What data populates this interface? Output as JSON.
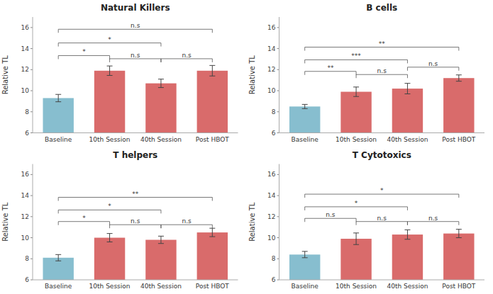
{
  "chart_data": [
    {
      "type": "bar",
      "title": "Natural Killers",
      "categories": [
        "Baseline",
        "10th Session",
        "40th Session",
        "Post HBOT"
      ],
      "values": [
        9.3,
        11.9,
        10.7,
        11.9
      ],
      "errors": [
        0.35,
        0.45,
        0.4,
        0.5
      ],
      "colors": [
        "#87BECF",
        "#D96B6B",
        "#D96B6B",
        "#D96B6B"
      ],
      "annotations": [
        {
          "from": "Baseline",
          "to": "10th Session",
          "y": 13.0,
          "label": "*"
        },
        {
          "from": "Baseline",
          "to": "40th Session",
          "y": 14.2,
          "label": "*"
        },
        {
          "from": "Baseline",
          "to": "Post HBOT",
          "y": 15.5,
          "label": "n.s"
        },
        {
          "from": "10th Session",
          "to": "40th Session",
          "y": 12.7,
          "label": "n.s"
        },
        {
          "from": "40th Session",
          "to": "Post HBOT",
          "y": 12.7,
          "label": "n.s"
        }
      ],
      "ylabel": "Relative TL",
      "ylim": [
        6,
        17
      ],
      "yticks": [
        6,
        8,
        10,
        12,
        14,
        16
      ],
      "grid": false
    },
    {
      "type": "bar",
      "title": "B cells",
      "categories": [
        "Baseline",
        "10th Session",
        "40th Session",
        "Post HBOT"
      ],
      "values": [
        8.5,
        9.9,
        10.2,
        11.2
      ],
      "errors": [
        0.2,
        0.45,
        0.5,
        0.3
      ],
      "colors": [
        "#87BECF",
        "#D96B6B",
        "#D96B6B",
        "#D96B6B"
      ],
      "annotations": [
        {
          "from": "Baseline",
          "to": "10th Session",
          "y": 11.5,
          "label": "**"
        },
        {
          "from": "Baseline",
          "to": "40th Session",
          "y": 12.6,
          "label": "***"
        },
        {
          "from": "Baseline",
          "to": "Post HBOT",
          "y": 13.8,
          "label": "**"
        },
        {
          "from": "10th Session",
          "to": "40th Session",
          "y": 11.2,
          "label": "n.s"
        },
        {
          "from": "40th Session",
          "to": "Post HBOT",
          "y": 11.9,
          "label": "n.s"
        }
      ],
      "ylabel": "Relative TL",
      "ylim": [
        6,
        17
      ],
      "yticks": [
        6,
        8,
        10,
        12,
        14,
        16
      ],
      "grid": false
    },
    {
      "type": "bar",
      "title": "T helpers",
      "categories": [
        "Baseline",
        "10th Session",
        "40th Session",
        "Post HBOT"
      ],
      "values": [
        8.1,
        10.0,
        9.8,
        10.5
      ],
      "errors": [
        0.3,
        0.4,
        0.35,
        0.4
      ],
      "colors": [
        "#87BECF",
        "#D96B6B",
        "#D96B6B",
        "#D96B6B"
      ],
      "annotations": [
        {
          "from": "Baseline",
          "to": "10th Session",
          "y": 11.2,
          "label": "*"
        },
        {
          "from": "Baseline",
          "to": "40th Session",
          "y": 12.3,
          "label": "*"
        },
        {
          "from": "Baseline",
          "to": "Post HBOT",
          "y": 13.5,
          "label": "**"
        },
        {
          "from": "10th Session",
          "to": "40th Session",
          "y": 10.9,
          "label": "n.s"
        },
        {
          "from": "40th Session",
          "to": "Post HBOT",
          "y": 10.9,
          "label": "n.s"
        }
      ],
      "ylabel": "Relative TL",
      "ylim": [
        6,
        17
      ],
      "yticks": [
        6,
        8,
        10,
        12,
        14,
        16
      ],
      "grid": false
    },
    {
      "type": "bar",
      "title": "T Cytotoxics",
      "categories": [
        "Baseline",
        "10th Session",
        "40th Session",
        "Post HBOT"
      ],
      "values": [
        8.4,
        9.9,
        10.3,
        10.4
      ],
      "errors": [
        0.3,
        0.55,
        0.45,
        0.4
      ],
      "colors": [
        "#87BECF",
        "#D96B6B",
        "#D96B6B",
        "#D96B6B"
      ],
      "annotations": [
        {
          "from": "Baseline",
          "to": "10th Session",
          "y": 11.5,
          "label": "n.s"
        },
        {
          "from": "Baseline",
          "to": "40th Session",
          "y": 12.6,
          "label": "*"
        },
        {
          "from": "Baseline",
          "to": "Post HBOT",
          "y": 13.8,
          "label": "*"
        },
        {
          "from": "10th Session",
          "to": "40th Session",
          "y": 11.2,
          "label": "n.s"
        },
        {
          "from": "40th Session",
          "to": "Post HBOT",
          "y": 11.2,
          "label": "n.s"
        }
      ],
      "ylabel": "Relative TL",
      "ylim": [
        6,
        17
      ],
      "yticks": [
        6,
        8,
        10,
        12,
        14,
        16
      ],
      "grid": false
    }
  ]
}
